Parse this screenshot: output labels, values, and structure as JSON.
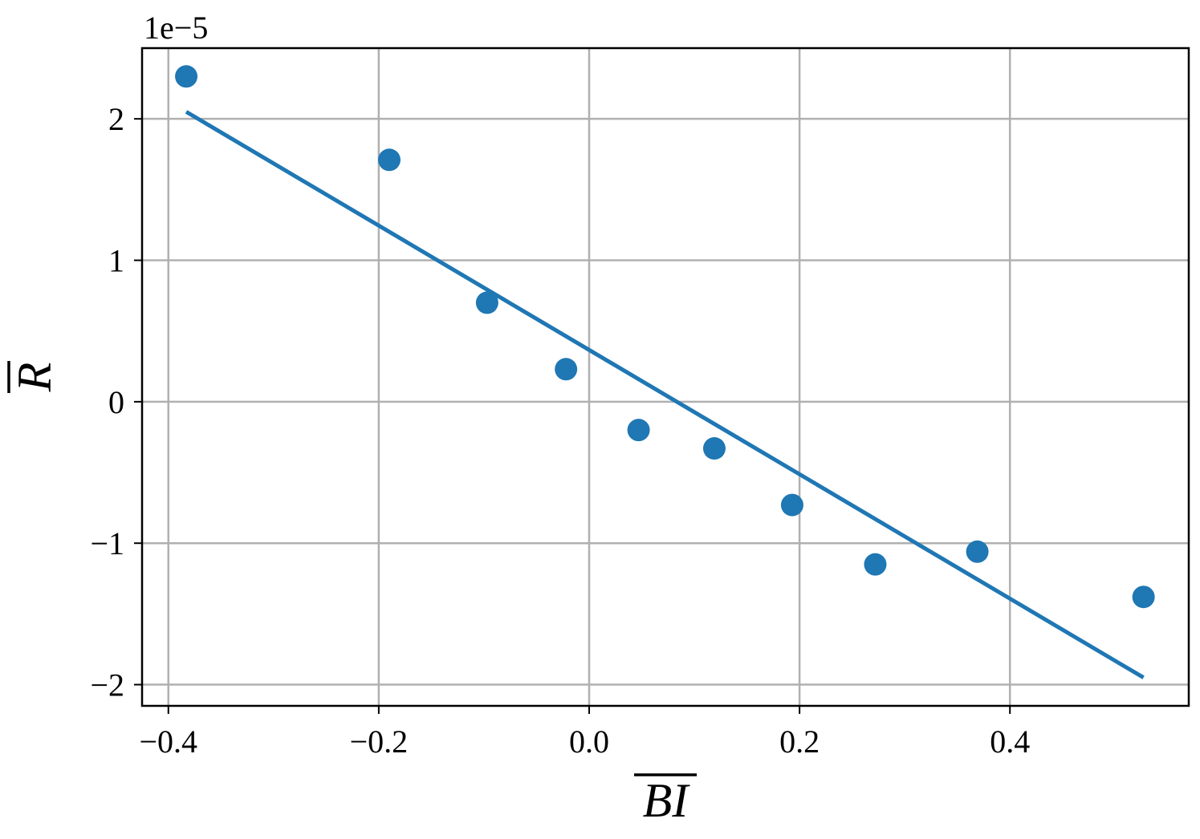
{
  "chart_data": {
    "type": "scatter",
    "title": "",
    "xlabel": "BI",
    "ylabel": "R",
    "xlabel_overline": true,
    "ylabel_overline": true,
    "y_offset_label": "1e−5",
    "y_scale": 1e-05,
    "xlim": [
      -0.425,
      0.57
    ],
    "ylim": [
      -2.15,
      2.5
    ],
    "grid": true,
    "legend": "none",
    "x_ticks": [
      -0.4,
      -0.2,
      0.0,
      0.2,
      0.4
    ],
    "x_tick_labels": [
      "−0.4",
      "−0.2",
      "0.0",
      "0.2",
      "0.4"
    ],
    "y_ticks": [
      -2,
      -1,
      0,
      1,
      2
    ],
    "y_tick_labels": [
      "−2",
      "−1",
      "0",
      "1",
      "2"
    ],
    "series": [
      {
        "kind": "scatter",
        "color": "#1f77b4",
        "x": [
          -0.383,
          -0.19,
          -0.097,
          -0.022,
          0.047,
          0.119,
          0.193,
          0.272,
          0.369,
          0.527
        ],
        "y": [
          2.3,
          1.71,
          0.7,
          0.23,
          -0.2,
          -0.33,
          -0.73,
          -1.15,
          -1.06,
          -1.38
        ]
      },
      {
        "kind": "line",
        "color": "#1f77b4",
        "x": [
          -0.383,
          0.527
        ],
        "y": [
          2.05,
          -1.95
        ]
      }
    ]
  }
}
